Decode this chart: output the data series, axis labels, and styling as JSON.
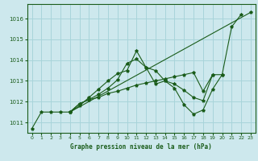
{
  "title": "Graphe pression niveau de la mer (hPa)",
  "background_color": "#cde8ed",
  "grid_color": "#a8d4da",
  "line_color": "#1a5c1a",
  "xlim": [
    -0.5,
    23.5
  ],
  "ylim": [
    1010.5,
    1016.7
  ],
  "yticks": [
    1011,
    1012,
    1013,
    1014,
    1015,
    1016
  ],
  "xticks": [
    0,
    1,
    2,
    3,
    4,
    5,
    6,
    7,
    8,
    9,
    10,
    11,
    12,
    13,
    14,
    15,
    16,
    17,
    18,
    19,
    20,
    21,
    22,
    23
  ],
  "series": [
    {
      "x": [
        0,
        1,
        2,
        3,
        4,
        5,
        6,
        7,
        8,
        9,
        10,
        11,
        12,
        13,
        14,
        15,
        16,
        17,
        18,
        19,
        20,
        21,
        22
      ],
      "y": [
        1010.7,
        1011.5,
        1011.5,
        1011.5,
        1011.5,
        1011.8,
        1012.2,
        1012.6,
        1013.0,
        1013.35,
        1013.5,
        1014.45,
        1013.65,
        1013.5,
        1013.0,
        1012.65,
        1011.85,
        1011.4,
        1011.6,
        1012.6,
        1013.3,
        1015.6,
        1016.2
      ]
    },
    {
      "x": [
        4,
        5,
        6,
        7,
        8,
        9,
        10,
        11,
        12,
        13,
        14,
        15,
        16,
        17,
        18,
        19
      ],
      "y": [
        1011.5,
        1011.9,
        1012.1,
        1012.35,
        1012.65,
        1013.05,
        1013.85,
        1014.05,
        1013.65,
        1012.85,
        1013.0,
        1012.85,
        1012.55,
        1012.2,
        1012.05,
        1013.3
      ]
    },
    {
      "x": [
        4,
        5,
        6,
        7,
        8,
        9,
        10,
        11,
        12,
        13,
        14,
        15,
        16,
        17,
        18,
        19,
        20
      ],
      "y": [
        1011.5,
        1011.9,
        1012.1,
        1012.2,
        1012.4,
        1012.5,
        1012.65,
        1012.8,
        1012.9,
        1013.0,
        1013.1,
        1013.2,
        1013.3,
        1013.4,
        1012.5,
        1013.3,
        1013.3
      ]
    },
    {
      "x": [
        4,
        23
      ],
      "y": [
        1011.5,
        1016.3
      ]
    }
  ]
}
